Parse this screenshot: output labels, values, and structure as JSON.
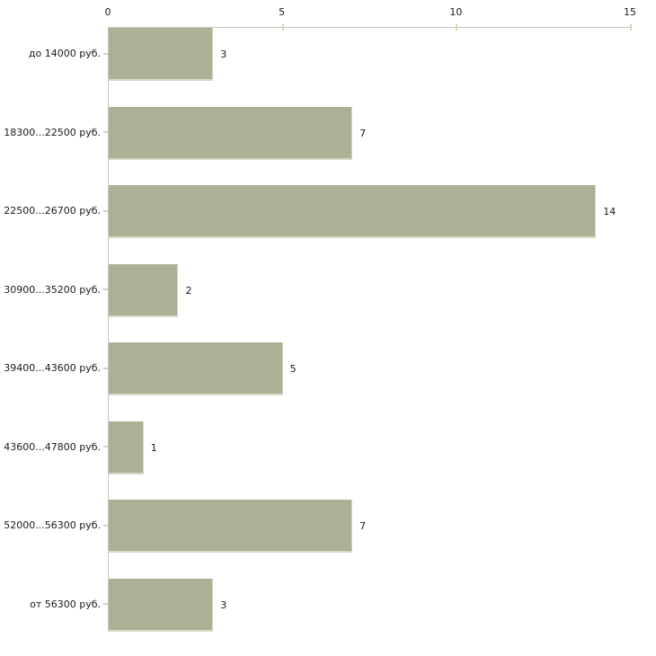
{
  "chart_data": {
    "type": "bar",
    "orientation": "horizontal",
    "title": "",
    "xlabel": "",
    "ylabel": "",
    "categories": [
      "до 14000 руб.",
      "18300...22500 руб.",
      "22500...26700 руб.",
      "30900...35200 руб.",
      "39400...43600 руб.",
      "43600...47800 руб.",
      "52000...56300 руб.",
      "от 56300 руб."
    ],
    "values": [
      3,
      7,
      14,
      2,
      5,
      1,
      7,
      3
    ],
    "xlim": [
      0,
      15
    ],
    "x_ticks": [
      0,
      5,
      10,
      15
    ],
    "x_axis_position": "top",
    "grid": false,
    "legend": "none",
    "value_labels_shown": true,
    "colors": {
      "bar_fill": "#abb195",
      "bar_edge": "#d6d9c8",
      "axis_line": "#c6c6c6",
      "tick_mark": "#d2d5b5",
      "text": "#1a1a1a",
      "background": "#ffffff"
    }
  }
}
